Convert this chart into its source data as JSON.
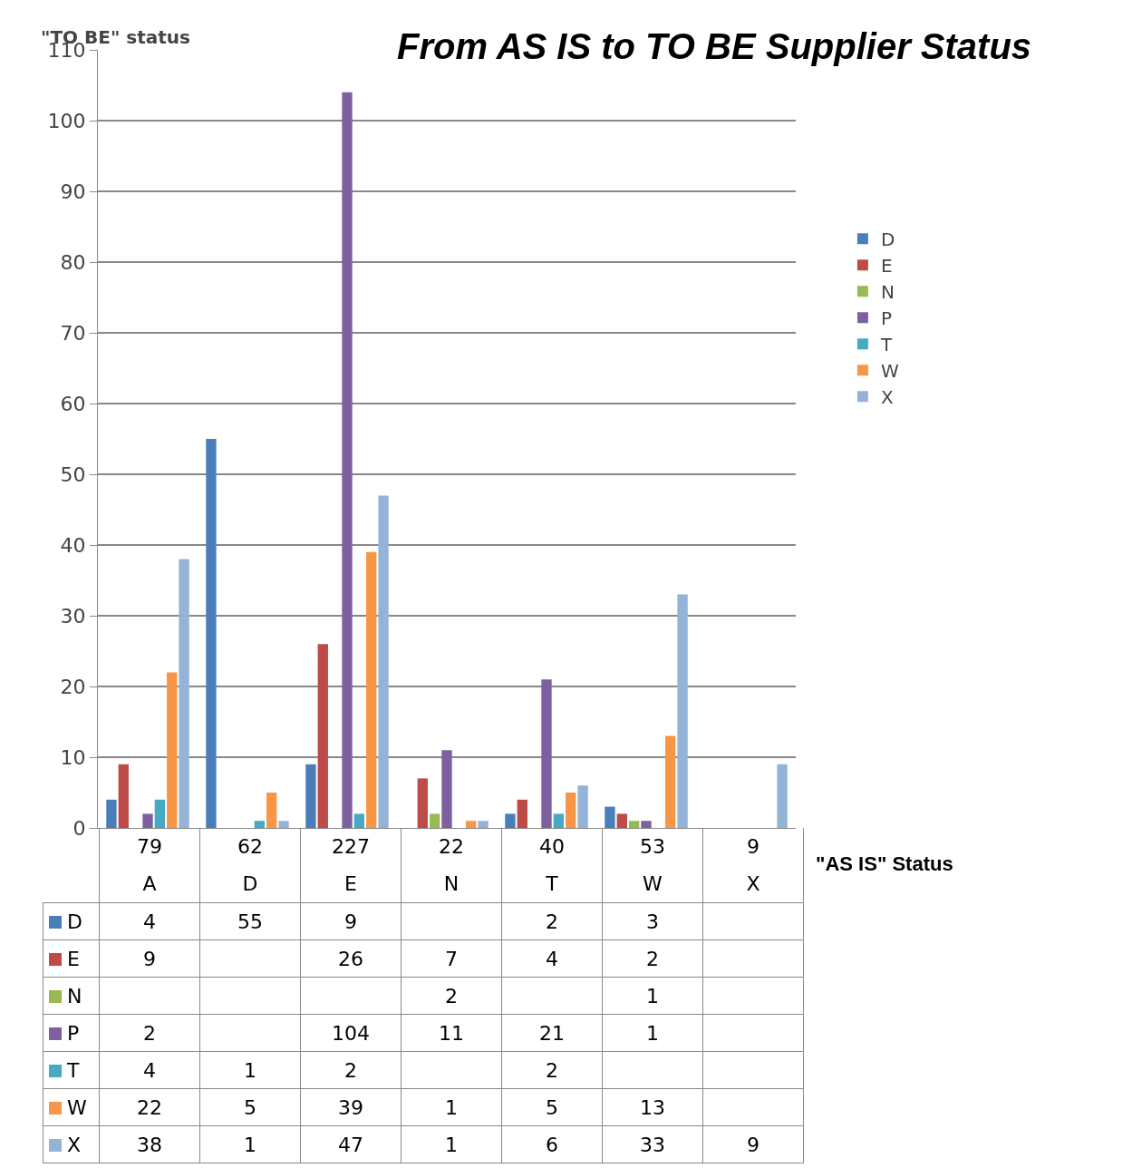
{
  "chart_data": {
    "type": "bar",
    "title": "From AS IS to TO BE Supplier Status",
    "ylabel": "\"TO BE\" status",
    "xlabel": "\"AS IS\" Status",
    "categories": [
      "A",
      "D",
      "E",
      "N",
      "T",
      "W",
      "X"
    ],
    "totals": [
      "79",
      "62",
      "227",
      "22",
      "40",
      "53",
      "9"
    ],
    "series": [
      {
        "name": "D",
        "color": "#4a7ebb",
        "values": [
          4,
          55,
          9,
          null,
          2,
          3,
          null
        ]
      },
      {
        "name": "E",
        "color": "#be4b48",
        "values": [
          9,
          null,
          26,
          7,
          4,
          2,
          null
        ]
      },
      {
        "name": "N",
        "color": "#98b954",
        "values": [
          null,
          null,
          null,
          2,
          null,
          1,
          null
        ]
      },
      {
        "name": "P",
        "color": "#7d60a0",
        "values": [
          2,
          null,
          104,
          11,
          21,
          1,
          null
        ]
      },
      {
        "name": "T",
        "color": "#46aac5",
        "values": [
          4,
          1,
          2,
          null,
          2,
          null,
          null
        ]
      },
      {
        "name": "W",
        "color": "#f79646",
        "values": [
          22,
          5,
          39,
          1,
          5,
          13,
          null
        ]
      },
      {
        "name": "X",
        "color": "#95b3d7",
        "values": [
          38,
          1,
          47,
          1,
          6,
          33,
          9
        ]
      }
    ],
    "ylim": [
      0,
      110
    ],
    "yticks": [
      0,
      10,
      20,
      30,
      40,
      50,
      60,
      70,
      80,
      90,
      100,
      110
    ],
    "grid": "y",
    "legend": "right",
    "data_labels": true
  }
}
